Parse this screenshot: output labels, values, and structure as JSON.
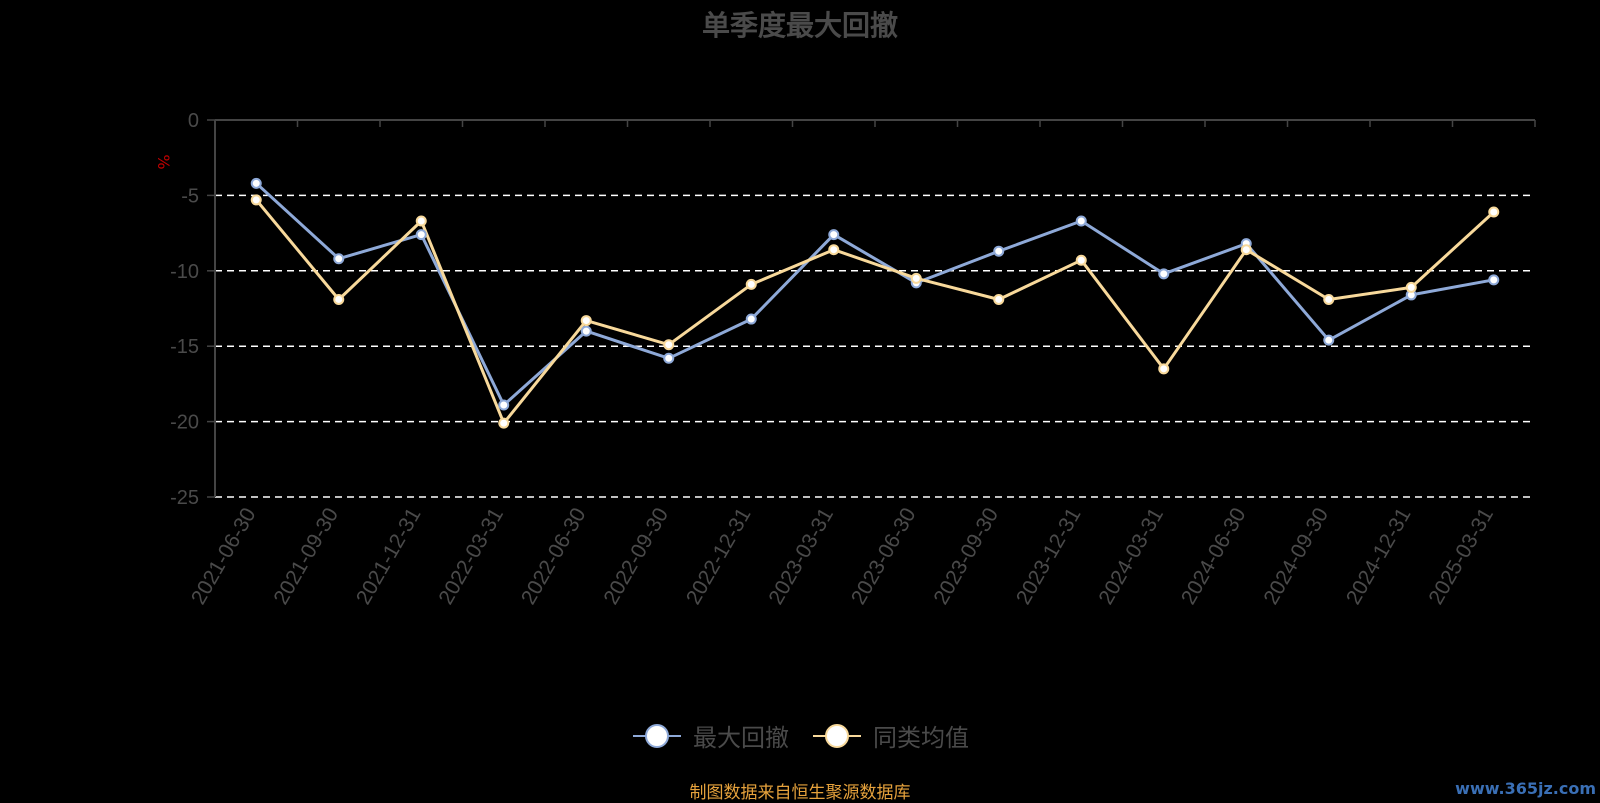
{
  "title": "单季度最大回撤",
  "source": "制图数据来自恒生聚源数据库",
  "watermark": "www.365jz.com",
  "colors": {
    "series1": "#8ea9d8",
    "series2": "#f8d99b",
    "axis": "#444444",
    "grid": "#ffffff",
    "text": "#4a4a4a",
    "ylabel": "#c00000",
    "source": "#e6a23c"
  },
  "chart_data": {
    "type": "line",
    "ylabel": "%",
    "ylim": [
      -25,
      0
    ],
    "yticks": [
      0,
      -5,
      -10,
      -15,
      -20,
      -25
    ],
    "grid": "dashed horizontal",
    "legend_position": "bottom-center",
    "categories": [
      "2021-06-30",
      "2021-09-30",
      "2021-12-31",
      "2022-03-31",
      "2022-06-30",
      "2022-09-30",
      "2022-12-31",
      "2023-03-31",
      "2023-06-30",
      "2023-09-30",
      "2023-12-31",
      "2024-03-31",
      "2024-06-30",
      "2024-09-30",
      "2024-12-31",
      "2025-03-31"
    ],
    "series": [
      {
        "name": "最大回撤",
        "color": "#8ea9d8",
        "values": [
          -4.2,
          -9.2,
          -7.6,
          -18.9,
          -14.0,
          -15.8,
          -13.2,
          -7.6,
          -10.8,
          -8.7,
          -6.7,
          -10.2,
          -8.2,
          -14.6,
          -11.6,
          -10.6
        ]
      },
      {
        "name": "同类均值",
        "color": "#f8d99b",
        "values": [
          -5.3,
          -11.9,
          -6.7,
          -20.1,
          -13.3,
          -14.9,
          -10.9,
          -8.6,
          -10.5,
          -11.9,
          -9.3,
          -16.5,
          -8.6,
          -11.9,
          -11.1,
          -6.1
        ]
      }
    ]
  }
}
